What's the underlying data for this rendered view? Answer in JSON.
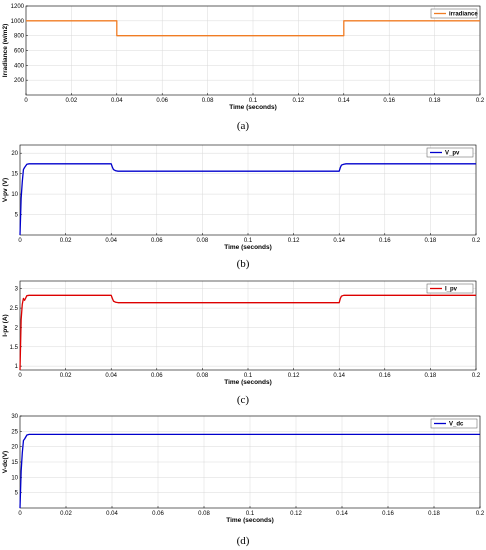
{
  "chart_data": [
    {
      "type": "line",
      "caption": "(a)",
      "xlabel": "Time (seconds)",
      "ylabel": "Irradiance (w/m2)",
      "xlim": [
        0,
        0.2
      ],
      "ylim": [
        0,
        1200
      ],
      "xticks": [
        0,
        0.02,
        0.04,
        0.06,
        0.08,
        0.1,
        0.12,
        0.14,
        0.16,
        0.18,
        0.2
      ],
      "yticks": [
        200,
        400,
        600,
        800,
        1000,
        1200
      ],
      "grid": true,
      "legend_position": "top-right",
      "series": [
        {
          "name": "irradiance",
          "color": "#f07c24",
          "x": [
            0,
            0.04,
            0.04,
            0.14,
            0.14,
            0.2
          ],
          "y": [
            1000,
            1000,
            800,
            800,
            1000,
            1000
          ]
        }
      ]
    },
    {
      "type": "line",
      "caption": "(b)",
      "xlabel": "Time (seconds)",
      "ylabel": "V-pv (V)",
      "xlim": [
        0,
        0.2
      ],
      "ylim": [
        0,
        22
      ],
      "xticks": [
        0,
        0.02,
        0.04,
        0.06,
        0.08,
        0.1,
        0.12,
        0.14,
        0.16,
        0.18,
        0.2
      ],
      "yticks": [
        5,
        10,
        15,
        20
      ],
      "grid": true,
      "legend_position": "top-right",
      "series": [
        {
          "name": "V_pv",
          "color": "#0000cc",
          "x": [
            0,
            0.0005,
            0.001,
            0.0015,
            0.002,
            0.003,
            0.004,
            0.04,
            0.0405,
            0.041,
            0.042,
            0.043,
            0.14,
            0.1405,
            0.141,
            0.142,
            0.143,
            0.2
          ],
          "y": [
            0,
            9,
            13,
            16,
            16.5,
            17.3,
            17.4,
            17.4,
            16.6,
            16.0,
            15.7,
            15.6,
            15.6,
            16.5,
            17.1,
            17.3,
            17.4,
            17.4
          ]
        }
      ]
    },
    {
      "type": "line",
      "caption": "(c)",
      "xlabel": "Time (seconds)",
      "ylabel": "I-pv (A)",
      "xlim": [
        0,
        0.2
      ],
      "ylim": [
        0.9,
        3.2
      ],
      "xticks": [
        0,
        0.02,
        0.04,
        0.06,
        0.08,
        0.1,
        0.12,
        0.14,
        0.16,
        0.18,
        0.2
      ],
      "yticks": [
        1,
        1.5,
        2,
        2.5,
        3
      ],
      "grid": true,
      "legend_position": "top-right",
      "series": [
        {
          "name": "I_pv",
          "color": "#dd0000",
          "x": [
            0,
            0.0005,
            0.001,
            0.0015,
            0.002,
            0.003,
            0.004,
            0.04,
            0.0405,
            0.041,
            0.042,
            0.043,
            0.14,
            0.1405,
            0.141,
            0.142,
            0.143,
            0.2
          ],
          "y": [
            0.9,
            2.2,
            2.6,
            2.75,
            2.7,
            2.82,
            2.83,
            2.83,
            2.75,
            2.68,
            2.65,
            2.64,
            2.64,
            2.75,
            2.81,
            2.83,
            2.83,
            2.83
          ]
        }
      ]
    },
    {
      "type": "line",
      "caption": "(d)",
      "xlabel": "Time (seconds)",
      "ylabel": "V-dc(V)",
      "xlim": [
        0,
        0.2
      ],
      "ylim": [
        0,
        30
      ],
      "xticks": [
        0,
        0.02,
        0.04,
        0.06,
        0.08,
        0.1,
        0.12,
        0.14,
        0.16,
        0.18,
        0.2
      ],
      "yticks": [
        5,
        10,
        15,
        20,
        25,
        30
      ],
      "grid": true,
      "legend_position": "top-right",
      "series": [
        {
          "name": "V_dc",
          "color": "#0000cc",
          "x": [
            0,
            0.0005,
            0.001,
            0.0015,
            0.002,
            0.003,
            0.004,
            0.2
          ],
          "y": [
            0,
            12,
            18,
            22,
            22.5,
            23.8,
            24,
            24
          ]
        }
      ]
    }
  ]
}
